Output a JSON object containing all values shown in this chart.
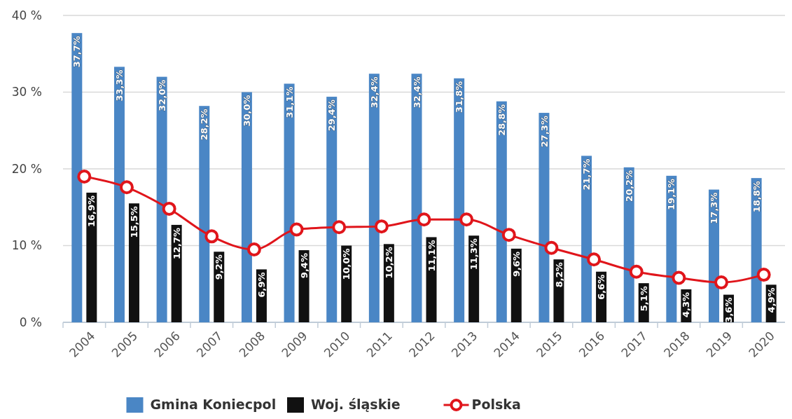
{
  "chart_data": {
    "type": "bar",
    "categories": [
      "2004",
      "2005",
      "2006",
      "2007",
      "2008",
      "2009",
      "2010",
      "2011",
      "2012",
      "2013",
      "2014",
      "2015",
      "2016",
      "2017",
      "2018",
      "2019",
      "2020"
    ],
    "series": [
      {
        "name": "Gmina Koniecpol",
        "color": "#4a86c5",
        "values": [
          37.7,
          33.3,
          32.0,
          28.2,
          30.0,
          31.1,
          29.4,
          32.4,
          32.4,
          31.8,
          28.8,
          27.3,
          21.7,
          20.2,
          19.1,
          17.3,
          18.8
        ],
        "value_labels": [
          "37,7%",
          "33,3%",
          "32,0%",
          "28,2%",
          "30,0%",
          "31,1%",
          "29,4%",
          "32,4%",
          "32,4%",
          "31,8%",
          "28,8%",
          "27,3%",
          "21,7%",
          "20,2%",
          "19,1%",
          "17,3%",
          "18,8%"
        ]
      },
      {
        "name": "Woj. śląskie",
        "color": "#111111",
        "values": [
          16.9,
          15.5,
          12.7,
          9.2,
          6.9,
          9.4,
          10.0,
          10.2,
          11.1,
          11.3,
          9.6,
          8.2,
          6.6,
          5.1,
          4.3,
          3.6,
          4.9
        ],
        "value_labels": [
          "16,9%",
          "15,5%",
          "12,7%",
          "9,2%",
          "6,9%",
          "9,4%",
          "10,0%",
          "10,2%",
          "11,1%",
          "11,3%",
          "9,6%",
          "8,2%",
          "6,6%",
          "5,1%",
          "4,3%",
          "3,6%",
          "4,9%"
        ]
      },
      {
        "name": "Polska",
        "type": "line",
        "color": "#e0151b",
        "marker": "circle",
        "values": [
          19.0,
          17.6,
          14.8,
          11.2,
          9.5,
          12.1,
          12.4,
          12.5,
          13.4,
          13.4,
          11.4,
          9.7,
          8.2,
          6.6,
          5.8,
          5.2,
          6.2
        ]
      }
    ],
    "ylim": [
      0,
      40
    ],
    "yticks": [
      {
        "value": 0,
        "label": "0 %"
      },
      {
        "value": 10,
        "label": "10 %"
      },
      {
        "value": 20,
        "label": "20 %"
      },
      {
        "value": 30,
        "label": "30 %"
      },
      {
        "value": 40,
        "label": "40 %"
      }
    ],
    "grid": "y",
    "legend": "bottom"
  }
}
